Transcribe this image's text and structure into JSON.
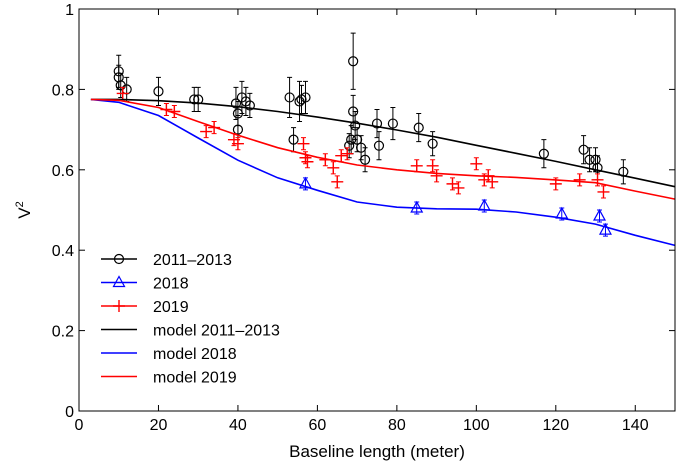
{
  "chart_data": {
    "type": "scatter",
    "xlabel": "Baseline length (meter)",
    "ylabel": "V",
    "ylabel_superscript": "2",
    "xlim": [
      0,
      150
    ],
    "ylim": [
      0,
      1
    ],
    "x_ticks": [
      0,
      20,
      40,
      60,
      80,
      100,
      120,
      140
    ],
    "y_ticks": [
      0,
      0.2,
      0.4,
      0.6,
      0.8,
      1
    ],
    "y_tick_labels": [
      "0",
      "0.2",
      "0.4",
      "0.6",
      "0.8",
      "1"
    ],
    "grid": false,
    "legend_position": "bottom-left",
    "series": [
      {
        "name": "2011–2013",
        "kind": "points",
        "marker": "circle",
        "color": "#000000",
        "points": [
          {
            "x": 10,
            "y": 0.845,
            "err": 0.04
          },
          {
            "x": 10,
            "y": 0.83,
            "err": 0.03
          },
          {
            "x": 10.5,
            "y": 0.81,
            "err": 0.03
          },
          {
            "x": 12,
            "y": 0.8,
            "err": 0.03
          },
          {
            "x": 20,
            "y": 0.795,
            "err": 0.035
          },
          {
            "x": 29,
            "y": 0.775,
            "err": 0.03
          },
          {
            "x": 30,
            "y": 0.775,
            "err": 0.03
          },
          {
            "x": 39.5,
            "y": 0.765,
            "err": 0.04
          },
          {
            "x": 40,
            "y": 0.74,
            "err": 0.03
          },
          {
            "x": 40,
            "y": 0.7,
            "err": 0.035
          },
          {
            "x": 41,
            "y": 0.78,
            "err": 0.04
          },
          {
            "x": 42,
            "y": 0.77,
            "err": 0.035
          },
          {
            "x": 43,
            "y": 0.76,
            "err": 0.03
          },
          {
            "x": 53,
            "y": 0.78,
            "err": 0.05
          },
          {
            "x": 54,
            "y": 0.675,
            "err": 0.03
          },
          {
            "x": 55.5,
            "y": 0.77,
            "err": 0.05
          },
          {
            "x": 56,
            "y": 0.775,
            "err": 0.035
          },
          {
            "x": 57,
            "y": 0.78,
            "err": 0.04
          },
          {
            "x": 68,
            "y": 0.66,
            "err": 0.03
          },
          {
            "x": 68.5,
            "y": 0.675,
            "err": 0.035
          },
          {
            "x": 69,
            "y": 0.87,
            "err": 0.07
          },
          {
            "x": 69,
            "y": 0.745,
            "err": 0.04
          },
          {
            "x": 69.5,
            "y": 0.71,
            "err": 0.035
          },
          {
            "x": 70,
            "y": 0.675,
            "err": 0.03
          },
          {
            "x": 71,
            "y": 0.655,
            "err": 0.03
          },
          {
            "x": 72,
            "y": 0.625,
            "err": 0.03
          },
          {
            "x": 75,
            "y": 0.715,
            "err": 0.035
          },
          {
            "x": 75.5,
            "y": 0.66,
            "err": 0.035
          },
          {
            "x": 79,
            "y": 0.715,
            "err": 0.04
          },
          {
            "x": 85.5,
            "y": 0.705,
            "err": 0.035
          },
          {
            "x": 89,
            "y": 0.665,
            "err": 0.03
          },
          {
            "x": 117,
            "y": 0.64,
            "err": 0.035
          },
          {
            "x": 127,
            "y": 0.65,
            "err": 0.035
          },
          {
            "x": 128.5,
            "y": 0.625,
            "err": 0.03
          },
          {
            "x": 130,
            "y": 0.625,
            "err": 0.03
          },
          {
            "x": 130.5,
            "y": 0.605,
            "err": 0.03
          },
          {
            "x": 137,
            "y": 0.595,
            "err": 0.03
          }
        ]
      },
      {
        "name": "2018",
        "kind": "points",
        "marker": "triangle",
        "color": "#0000ff",
        "points": [
          {
            "x": 57,
            "y": 0.565,
            "err": 0.015
          },
          {
            "x": 85,
            "y": 0.505,
            "err": 0.015
          },
          {
            "x": 102,
            "y": 0.51,
            "err": 0.015
          },
          {
            "x": 121.5,
            "y": 0.49,
            "err": 0.015
          },
          {
            "x": 131,
            "y": 0.485,
            "err": 0.015
          },
          {
            "x": 132.5,
            "y": 0.45,
            "err": 0.015
          }
        ]
      },
      {
        "name": "2019",
        "kind": "points",
        "marker": "plus",
        "color": "#ff0000",
        "points": [
          {
            "x": 11,
            "y": 0.79,
            "err": 0.015
          },
          {
            "x": 22,
            "y": 0.75,
            "err": 0.015
          },
          {
            "x": 24,
            "y": 0.745,
            "err": 0.015
          },
          {
            "x": 32,
            "y": 0.695,
            "err": 0.015
          },
          {
            "x": 34,
            "y": 0.705,
            "err": 0.015
          },
          {
            "x": 39,
            "y": 0.675,
            "err": 0.015
          },
          {
            "x": 40,
            "y": 0.665,
            "err": 0.015
          },
          {
            "x": 56.5,
            "y": 0.665,
            "err": 0.015
          },
          {
            "x": 57,
            "y": 0.63,
            "err": 0.015
          },
          {
            "x": 57.5,
            "y": 0.62,
            "err": 0.015
          },
          {
            "x": 62,
            "y": 0.625,
            "err": 0.015
          },
          {
            "x": 64,
            "y": 0.605,
            "err": 0.015
          },
          {
            "x": 65,
            "y": 0.57,
            "err": 0.015
          },
          {
            "x": 66,
            "y": 0.635,
            "err": 0.015
          },
          {
            "x": 67.5,
            "y": 0.64,
            "err": 0.015
          },
          {
            "x": 85,
            "y": 0.61,
            "err": 0.015
          },
          {
            "x": 89,
            "y": 0.61,
            "err": 0.015
          },
          {
            "x": 90,
            "y": 0.585,
            "err": 0.015
          },
          {
            "x": 94,
            "y": 0.565,
            "err": 0.015
          },
          {
            "x": 95.5,
            "y": 0.555,
            "err": 0.015
          },
          {
            "x": 100,
            "y": 0.615,
            "err": 0.015
          },
          {
            "x": 102,
            "y": 0.575,
            "err": 0.015
          },
          {
            "x": 103,
            "y": 0.585,
            "err": 0.015
          },
          {
            "x": 104,
            "y": 0.57,
            "err": 0.015
          },
          {
            "x": 120,
            "y": 0.565,
            "err": 0.015
          },
          {
            "x": 126,
            "y": 0.575,
            "err": 0.015
          },
          {
            "x": 130.5,
            "y": 0.575,
            "err": 0.015
          },
          {
            "x": 132,
            "y": 0.545,
            "err": 0.015
          }
        ]
      },
      {
        "name": "model 2011–2013",
        "kind": "line",
        "color": "#000000",
        "x": [
          3,
          10,
          20,
          30,
          40,
          50,
          60,
          70,
          80,
          90,
          100,
          110,
          120,
          130,
          140,
          150
        ],
        "y": [
          0.775,
          0.775,
          0.772,
          0.766,
          0.757,
          0.745,
          0.731,
          0.716,
          0.699,
          0.681,
          0.661,
          0.641,
          0.621,
          0.6,
          0.579,
          0.558
        ]
      },
      {
        "name": "model 2018",
        "kind": "line",
        "color": "#0000ff",
        "x": [
          3,
          10,
          20,
          30,
          40,
          50,
          60,
          70,
          80,
          90,
          100,
          110,
          120,
          130,
          140,
          150
        ],
        "y": [
          0.775,
          0.768,
          0.735,
          0.679,
          0.624,
          0.58,
          0.549,
          0.52,
          0.507,
          0.503,
          0.502,
          0.495,
          0.482,
          0.465,
          0.437,
          0.412
        ]
      },
      {
        "name": "model 2019",
        "kind": "line",
        "color": "#ff0000",
        "x": [
          3,
          10,
          20,
          30,
          40,
          50,
          60,
          70,
          80,
          90,
          100,
          110,
          120,
          130,
          140,
          150
        ],
        "y": [
          0.775,
          0.773,
          0.755,
          0.72,
          0.686,
          0.655,
          0.631,
          0.612,
          0.6,
          0.591,
          0.585,
          0.581,
          0.575,
          0.568,
          0.547,
          0.527
        ]
      }
    ]
  }
}
